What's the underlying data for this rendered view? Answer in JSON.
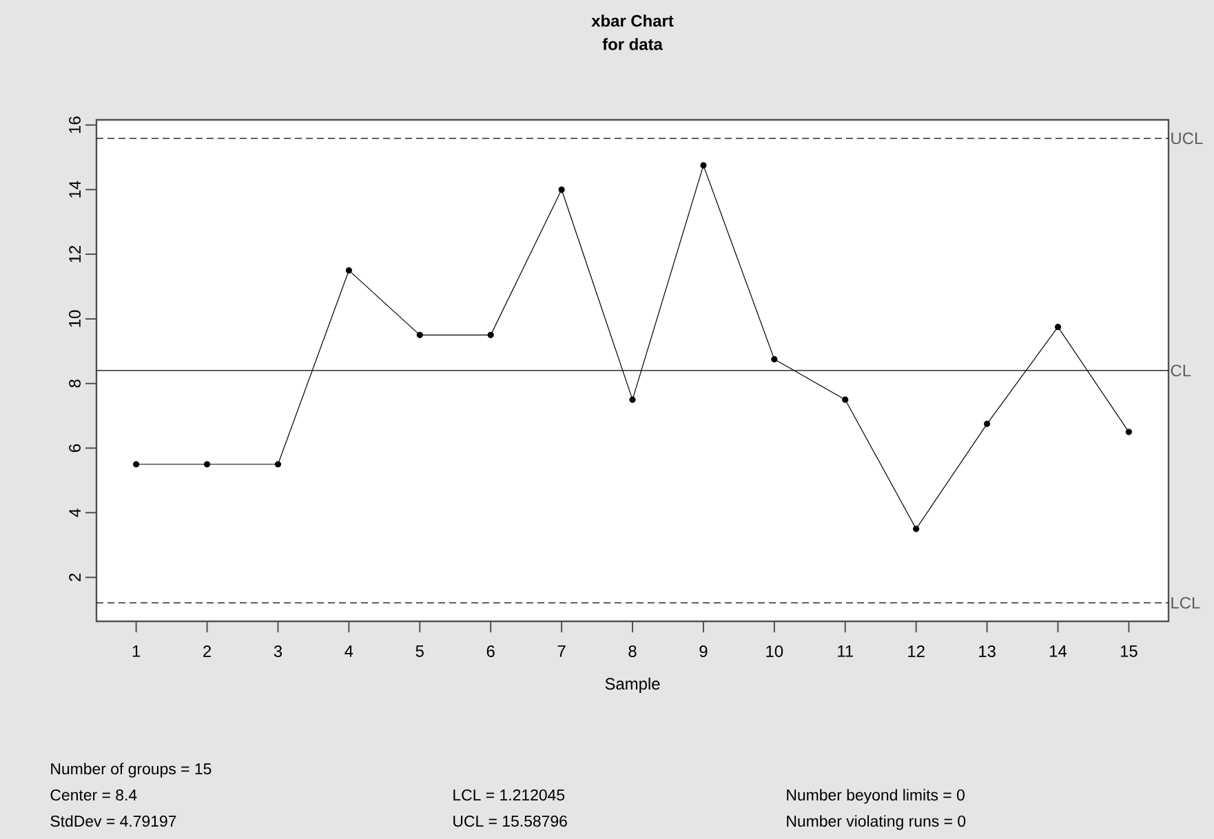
{
  "chart_data": {
    "type": "line",
    "title": "xbar Chart",
    "subtitle": "for data",
    "xlabel": "Sample",
    "x": [
      1,
      2,
      3,
      4,
      5,
      6,
      7,
      8,
      9,
      10,
      11,
      12,
      13,
      14,
      15
    ],
    "series": [
      {
        "color": "#000000",
        "values": [
          5.5,
          5.5,
          5.5,
          11.5,
          9.5,
          9.5,
          14,
          7.5,
          14.75,
          8.75,
          7.5,
          3.5,
          6.75,
          9.75,
          6.5
        ]
      }
    ],
    "marker": "circle",
    "line_style": "solid",
    "grid": false,
    "xlim": [
      0.44,
      15.56
    ],
    "xticks": [
      1,
      2,
      3,
      4,
      5,
      6,
      7,
      8,
      9,
      10,
      11,
      12,
      13,
      14,
      15
    ],
    "ylim": [
      0.64,
      16.16
    ],
    "yticks": [
      2,
      4,
      6,
      8,
      10,
      12,
      14,
      16
    ],
    "ref_lines": [
      {
        "axis": "y",
        "value": 15.58796,
        "label": "UCL",
        "line_style": "dashed"
      },
      {
        "axis": "y",
        "value": 8.4,
        "label": "CL",
        "line_style": "solid"
      },
      {
        "axis": "y",
        "value": 1.212045,
        "label": "LCL",
        "line_style": "dashed"
      }
    ],
    "annotations": [
      "Number of groups = 15",
      "Center = 8.4",
      "StdDev = 4.79197",
      "LCL = 1.212045",
      "UCL = 15.58796",
      "Number beyond limits = 0",
      "Number violating runs = 0"
    ]
  }
}
